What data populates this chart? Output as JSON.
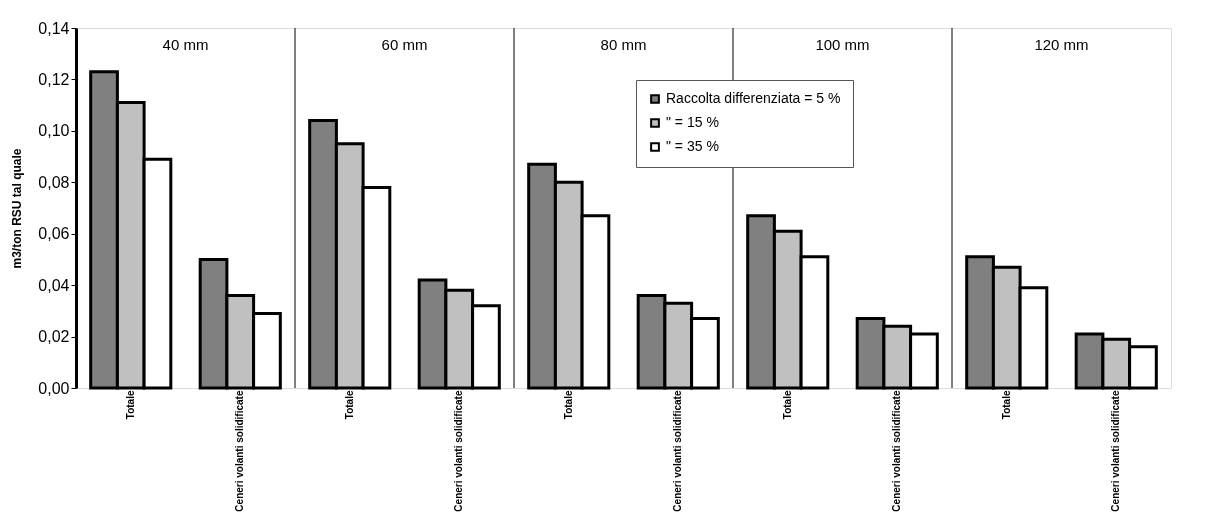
{
  "chart_data": {
    "type": "bar",
    "ylabel": "m3/ton RSU tal quale",
    "categories": [
      "Totale",
      "Ceneri volanti solidificate",
      "Totale",
      "Ceneri volanti solidificate",
      "Totale",
      "Ceneri volanti solidificate",
      "Totale",
      "Ceneri volanti solidificate",
      "Totale",
      "Ceneri volanti solidificate"
    ],
    "annotations": [
      "40 mm",
      "60 mm",
      "80 mm",
      "100 mm",
      "120 mm"
    ],
    "series": [
      {
        "name": "Raccolta differenziata = 5 %",
        "color": "#808080",
        "values": [
          0.123,
          0.05,
          0.104,
          0.042,
          0.087,
          0.036,
          0.067,
          0.027,
          0.051,
          0.021
        ]
      },
      {
        "name": "\"                  = 15 %",
        "color": "#c0c0c0",
        "values": [
          0.111,
          0.036,
          0.095,
          0.038,
          0.08,
          0.033,
          0.061,
          0.024,
          0.047,
          0.019
        ]
      },
      {
        "name": "\"                  = 35 %",
        "color": "#ffffff",
        "values": [
          0.089,
          0.029,
          0.078,
          0.032,
          0.067,
          0.027,
          0.051,
          0.021,
          0.039,
          0.016
        ]
      }
    ],
    "ylim": [
      0,
      0.14
    ],
    "yticks": [
      {
        "value": 0,
        "label": "0,00"
      },
      {
        "value": 0.02,
        "label": "0,02"
      },
      {
        "value": 0.04,
        "label": "0,04"
      },
      {
        "value": 0.06,
        "label": "0,06"
      },
      {
        "value": 0.08,
        "label": "0,08"
      },
      {
        "value": 0.1,
        "label": "0,10"
      },
      {
        "value": 0.12,
        "label": "0,12"
      },
      {
        "value": 0.14,
        "label": "0,14"
      }
    ],
    "grid": false,
    "legend": "top right"
  }
}
